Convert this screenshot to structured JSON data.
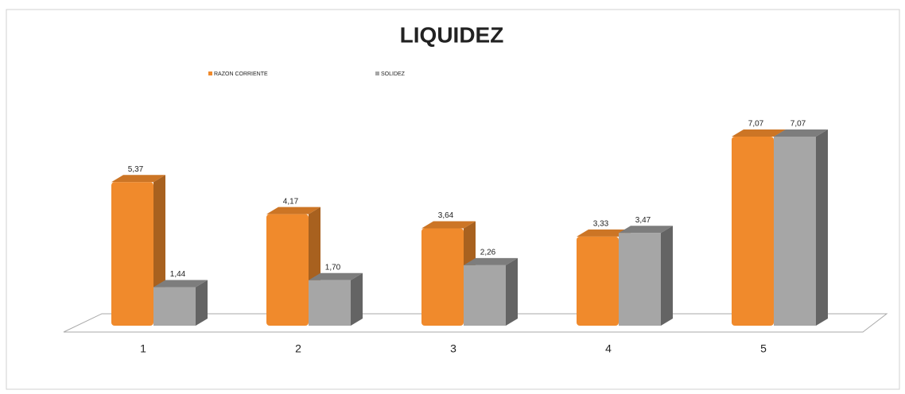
{
  "chart_data": {
    "type": "bar",
    "title": "LIQUIDEZ",
    "categories": [
      "1",
      "2",
      "3",
      "4",
      "5"
    ],
    "series": [
      {
        "name": "RAZON CORRIENTE",
        "color": "#f08a2c",
        "values": [
          5.37,
          4.17,
          3.64,
          3.33,
          7.07
        ],
        "value_labels": [
          "5,37",
          "4,17",
          "3,64",
          "3,33",
          "7,07"
        ]
      },
      {
        "name": "SOLIDEZ",
        "color": "#a6a6a6",
        "values": [
          1.44,
          1.7,
          2.26,
          3.47,
          7.07
        ],
        "value_labels": [
          "1,44",
          "1,70",
          "2,26",
          "3,47",
          "7,07"
        ]
      }
    ]
  }
}
